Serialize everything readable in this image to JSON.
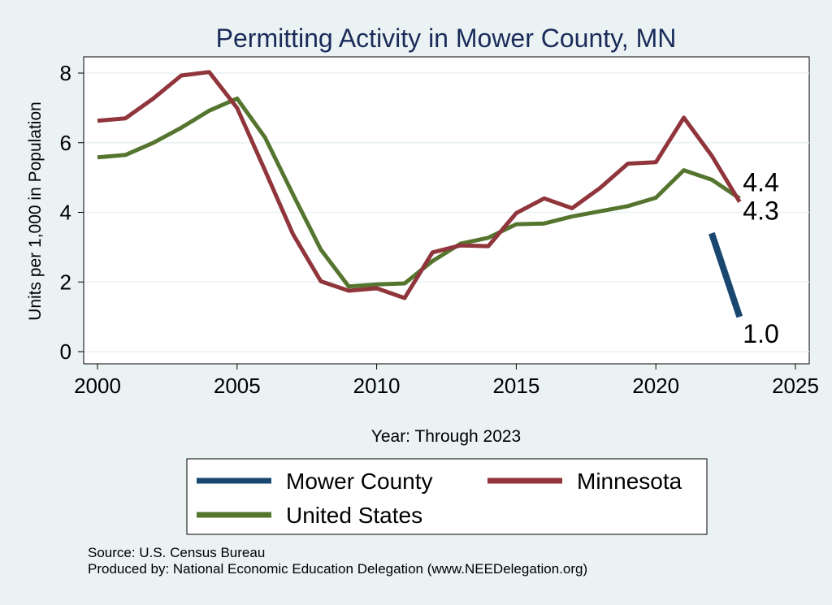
{
  "chart_data": {
    "type": "line",
    "title": "Permitting Activity in Mower County, MN",
    "xlabel": "Year: Through 2023",
    "ylabel": "Units per 1,000 in Population",
    "xlim": [
      2000,
      2025
    ],
    "ylim": [
      0,
      8
    ],
    "xticks": [
      "2000",
      "2005",
      "2010",
      "2015",
      "2020",
      "2025"
    ],
    "yticks": [
      "0",
      "2",
      "4",
      "6",
      "8"
    ],
    "grid": true,
    "legend_position": "bottom",
    "series": [
      {
        "name": "Mower County",
        "color": "#1a476f",
        "x": [
          2022,
          2023
        ],
        "values": [
          3.4,
          1.0
        ],
        "end_label": "1.0"
      },
      {
        "name": "Minnesota",
        "color": "#90353b",
        "x": [
          2000,
          2001,
          2002,
          2003,
          2004,
          2005,
          2006,
          2007,
          2008,
          2009,
          2010,
          2011,
          2012,
          2013,
          2014,
          2015,
          2016,
          2017,
          2018,
          2019,
          2020,
          2021,
          2022,
          2023
        ],
        "values": [
          6.63,
          6.7,
          7.27,
          7.93,
          8.03,
          7.0,
          5.2,
          3.38,
          2.02,
          1.75,
          1.82,
          1.54,
          2.85,
          3.05,
          3.03,
          3.98,
          4.4,
          4.12,
          4.7,
          5.4,
          5.44,
          6.72,
          5.63,
          4.3
        ],
        "end_label": "4.3"
      },
      {
        "name": "United States",
        "color": "#55752f",
        "x": [
          2000,
          2001,
          2002,
          2003,
          2004,
          2005,
          2006,
          2007,
          2008,
          2009,
          2010,
          2011,
          2012,
          2013,
          2014,
          2015,
          2016,
          2017,
          2018,
          2019,
          2020,
          2021,
          2022,
          2023
        ],
        "values": [
          5.58,
          5.65,
          6.0,
          6.43,
          6.92,
          7.27,
          6.15,
          4.52,
          2.93,
          1.87,
          1.93,
          1.96,
          2.6,
          3.1,
          3.27,
          3.66,
          3.68,
          3.88,
          4.03,
          4.18,
          4.42,
          5.21,
          4.94,
          4.4
        ],
        "end_label": "4.4"
      }
    ],
    "legend": [
      {
        "name": "Mower County",
        "color": "#1a476f"
      },
      {
        "name": "Minnesota",
        "color": "#90353b"
      },
      {
        "name": "United States",
        "color": "#55752f"
      }
    ]
  },
  "footer": {
    "source": "Source: U.S. Census Bureau",
    "produced_by": "Produced by: National Economic Education Delegation (www.NEEDelegation.org)"
  }
}
